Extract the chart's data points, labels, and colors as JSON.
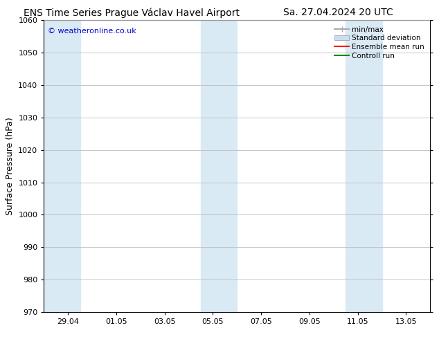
{
  "title_left": "ENS Time Series Prague Václav Havel Airport",
  "title_right": "Sa. 27.04.2024 20 UTC",
  "ylabel": "Surface Pressure (hPa)",
  "ylim": [
    970,
    1060
  ],
  "yticks": [
    970,
    980,
    990,
    1000,
    1010,
    1020,
    1030,
    1040,
    1050,
    1060
  ],
  "watermark": "© weatheronline.co.uk",
  "watermark_color": "#0000cc",
  "bg_color": "#ffffff",
  "plot_bg_color": "#ffffff",
  "shaded_band_color": "#daeaf5",
  "grid_color": "#bbbbbb",
  "xtick_labels": [
    "29.04",
    "01.05",
    "03.05",
    "05.05",
    "07.05",
    "09.05",
    "11.05",
    "13.05"
  ],
  "xtick_positions": [
    1,
    3,
    5,
    7,
    9,
    11,
    13,
    15
  ],
  "x_min": 0,
  "x_max": 16,
  "shaded_ranges": [
    [
      0,
      1.5
    ],
    [
      6.5,
      8.0
    ],
    [
      12.5,
      14.0
    ]
  ],
  "legend_minmax_color": "#aaaaaa",
  "legend_stddev_color": "#c8dff0",
  "legend_ens_color": "#ff0000",
  "legend_ctrl_color": "#008800",
  "title_fontsize": 10,
  "ylabel_fontsize": 9,
  "tick_fontsize": 8,
  "legend_fontsize": 7.5,
  "watermark_fontsize": 8
}
